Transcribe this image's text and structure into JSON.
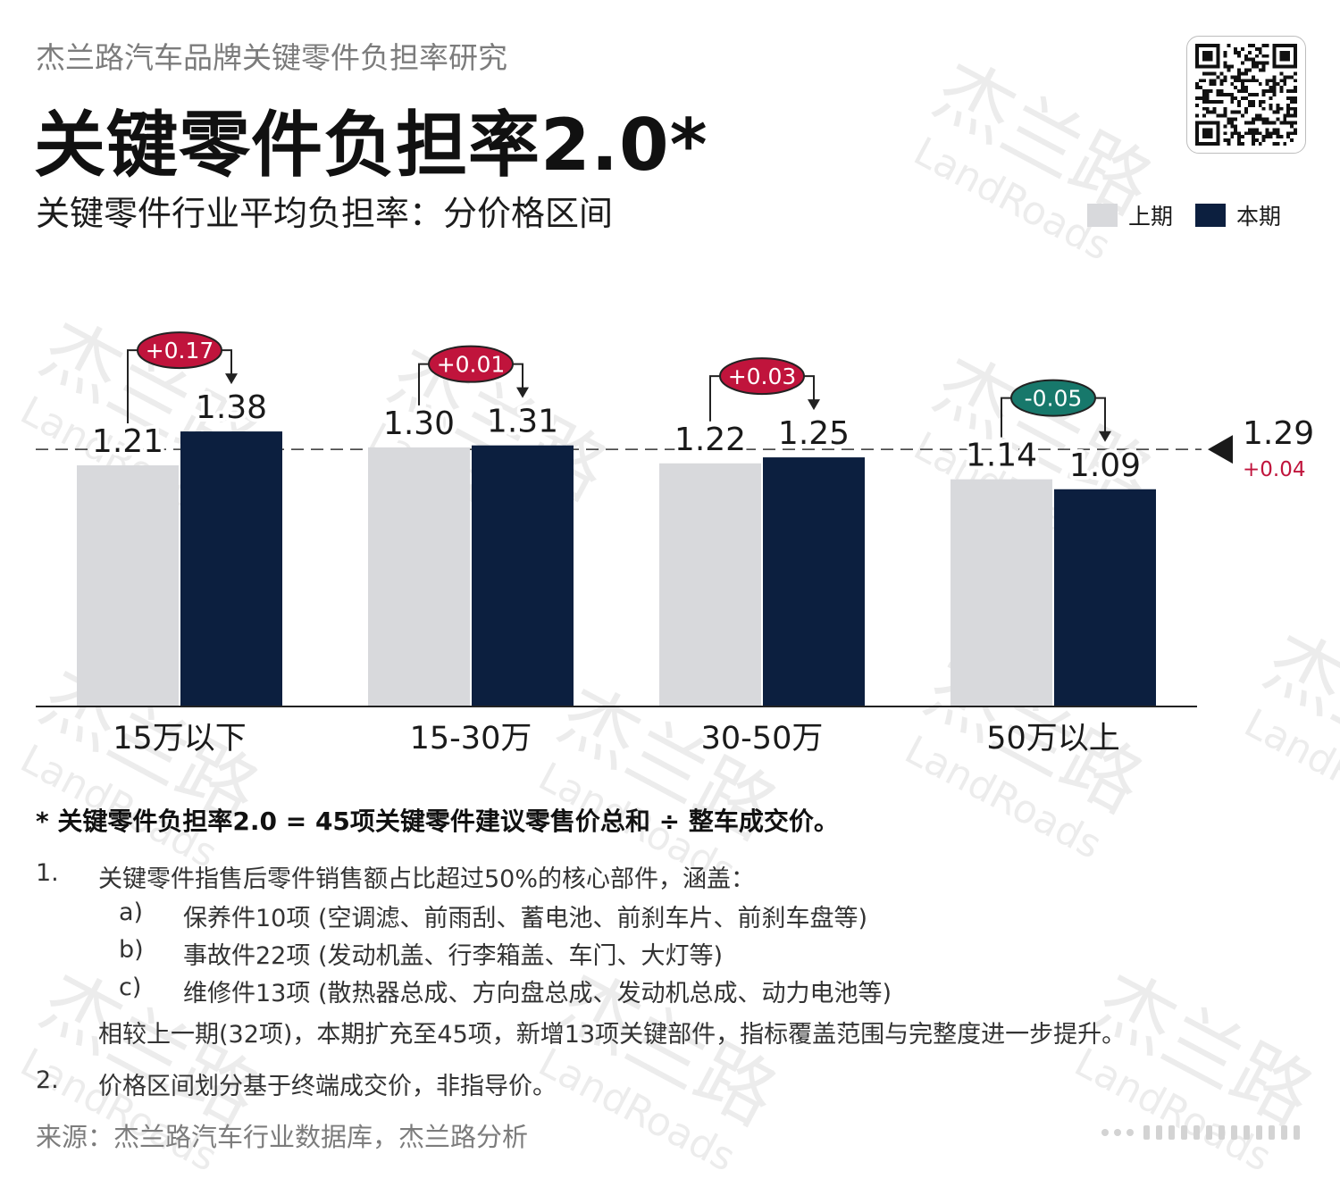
{
  "header": {
    "supertitle": "杰兰路汽车品牌关键零件负担率研究",
    "title": "关键零件负担率2.0*",
    "subtitle": "关键零件行业平均负担率：分价格区间"
  },
  "legend": [
    {
      "label": "上期",
      "color": "#d8d9dc"
    },
    {
      "label": "本期",
      "color": "#0c1f3f"
    }
  ],
  "chart_data": {
    "type": "bar",
    "categories": [
      "15万以下",
      "15-30万",
      "30-50万",
      "50万以上"
    ],
    "series": [
      {
        "name": "上期",
        "values": [
          1.21,
          1.3,
          1.22,
          1.14
        ],
        "labels": [
          "1.21",
          "1.30",
          "1.22",
          "1.14"
        ],
        "color": "#d8d9dc"
      },
      {
        "name": "本期",
        "values": [
          1.38,
          1.31,
          1.25,
          1.09
        ],
        "labels": [
          "1.38",
          "1.31",
          "1.25",
          "1.09"
        ],
        "color": "#0c1f3f"
      }
    ],
    "changes": [
      {
        "label": "+0.17",
        "color": "#c0143c"
      },
      {
        "label": "+0.01",
        "color": "#c0143c"
      },
      {
        "label": "+0.03",
        "color": "#c0143c"
      },
      {
        "label": "-0.05",
        "color": "#17786b"
      }
    ],
    "average": {
      "value": 1.29,
      "label": "1.29",
      "change": "+0.04",
      "change_color": "#c0143c"
    },
    "ylim": [
      0,
      1.5
    ],
    "xlabel": "",
    "ylabel": "",
    "grid": false
  },
  "footnote": "* 关键零件负担率2.0 = 45项关键零件建议零售价总和 ÷ 整车成交价。",
  "notes": {
    "n1": "1.",
    "n1_text": "关键零件指售后零件销售额占比超过50%的核心部件，涵盖：",
    "a_label": "a)",
    "a_text": "保养件10项 (空调滤、前雨刮、蓄电池、前刹车片、前刹车盘等)",
    "b_label": "b)",
    "b_text": "事故件22项 (发动机盖、行李箱盖、车门、大灯等)",
    "c_label": "c)",
    "c_text": "维修件13项 (散热器总成、方向盘总成、发动机总成、动力电池等)",
    "extra": "相较上一期(32项)，本期扩充至45项，新增13项关键部件，指标覆盖范围与完整度进一步提升。",
    "n2": "2.",
    "n2_text": "价格区间划分基于终端成交价，非指导价。"
  },
  "source": "来源：杰兰路汽车行业数据库，杰兰路分析",
  "watermark": {
    "cn": "杰兰路",
    "en": "LandRoads"
  },
  "icons": {
    "qr": "qr-code-icon",
    "average_marker": "triangle-left-icon"
  }
}
